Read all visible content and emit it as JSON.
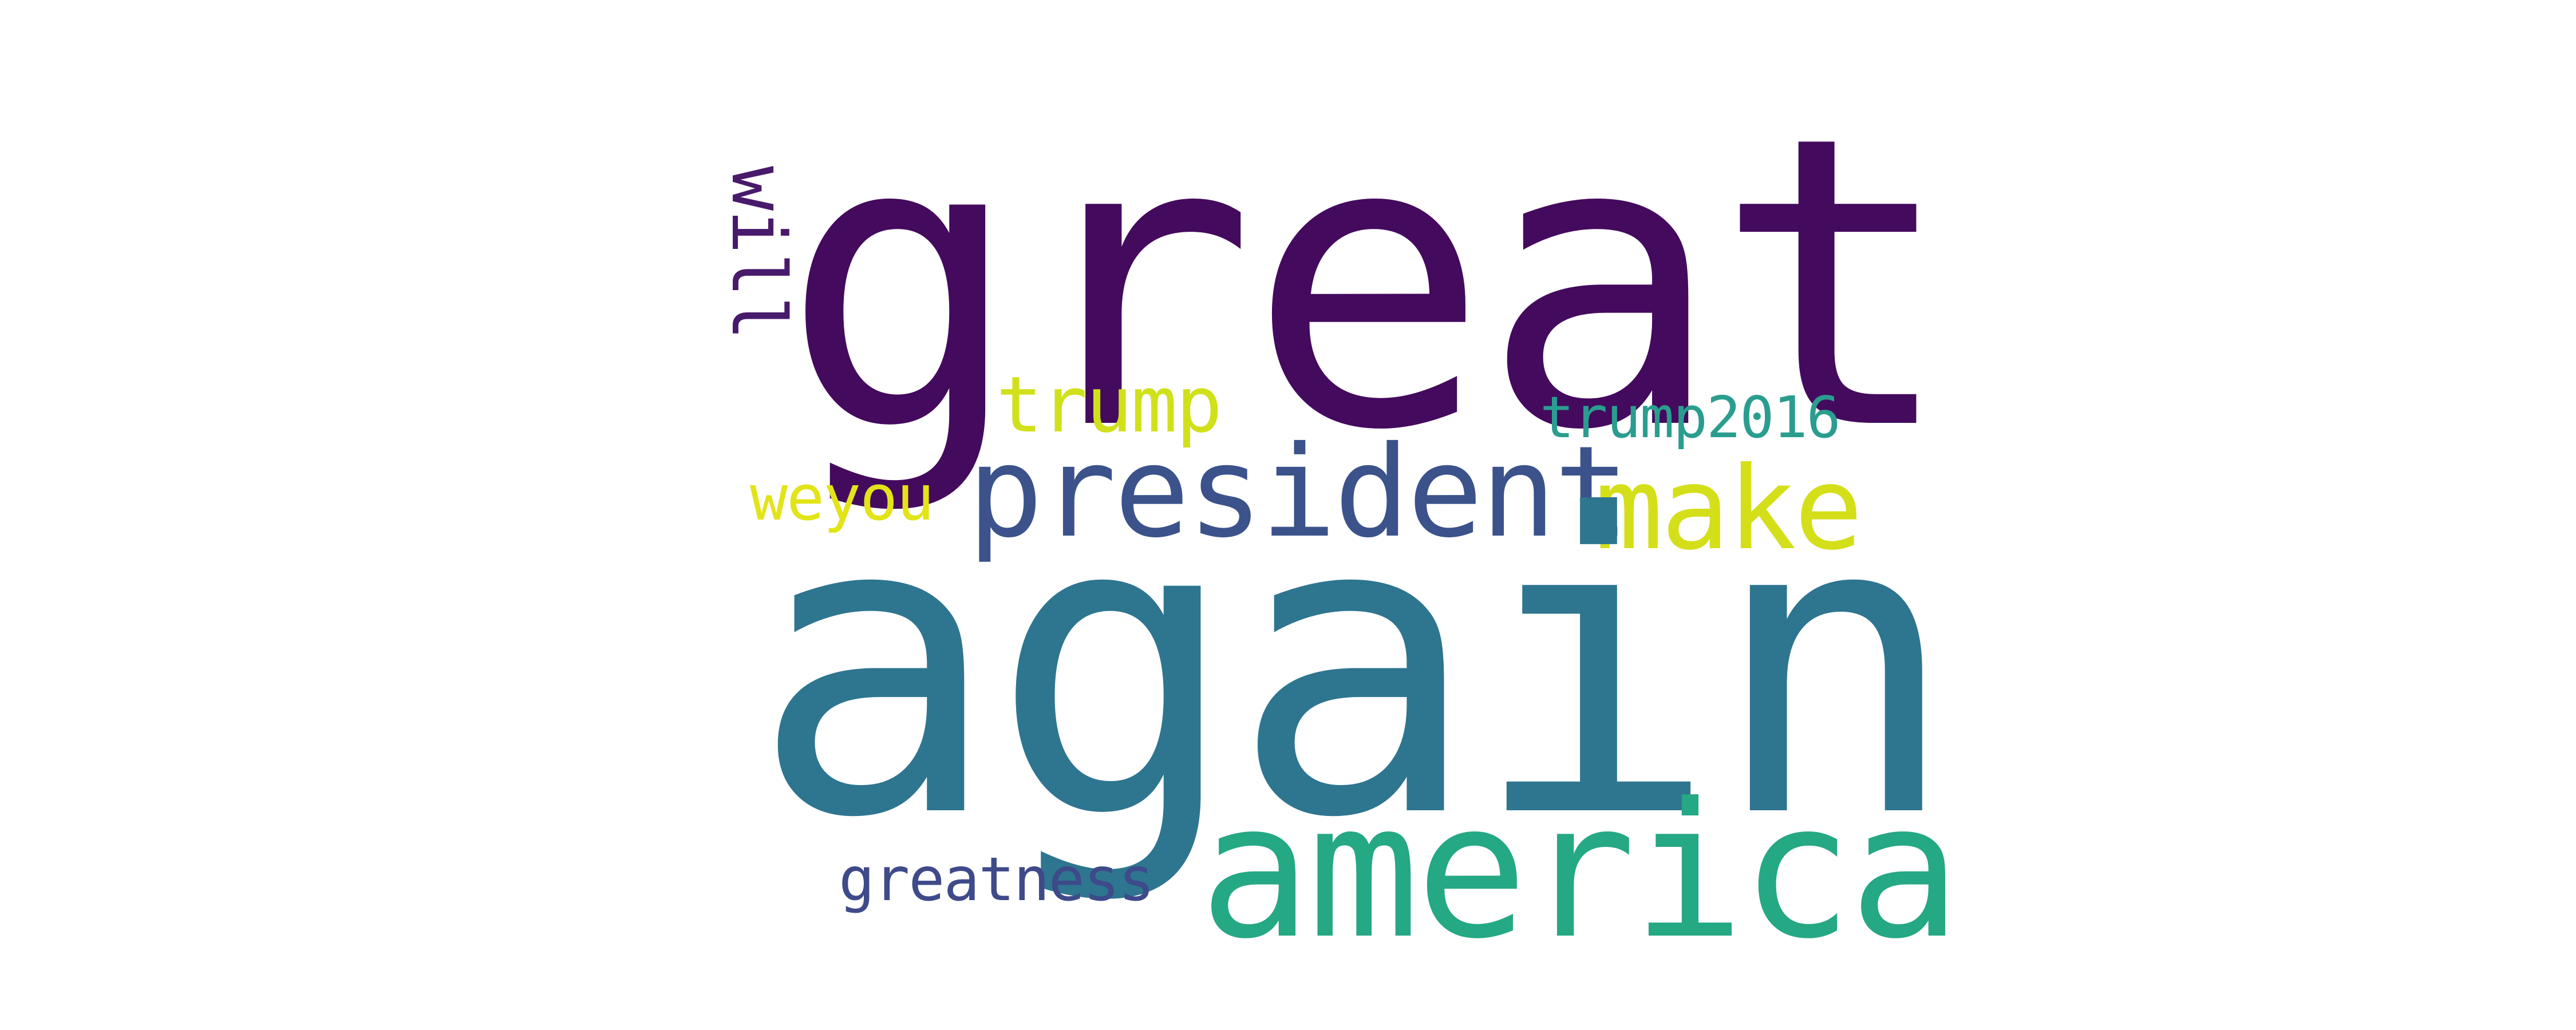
{
  "words": {
    "great": {
      "text": "great",
      "color": "#440a5e"
    },
    "again": {
      "text": "again",
      "color": "#2e7590"
    },
    "america": {
      "text": "america",
      "color": "#25a884"
    },
    "president": {
      "text": "president",
      "color": "#3b528b"
    },
    "make": {
      "text": "make",
      "color": "#d4df1a"
    },
    "trump": {
      "text": "trump",
      "color": "#d0e11c"
    },
    "trump2016": {
      "text": "trump2016",
      "color": "#2a9d8f"
    },
    "weyou": {
      "text": "weyou",
      "color": "#e2e418"
    },
    "greatness": {
      "text": "greatness",
      "color": "#3e4a89"
    },
    "will": {
      "text": "will",
      "color": "#481a6c"
    }
  }
}
